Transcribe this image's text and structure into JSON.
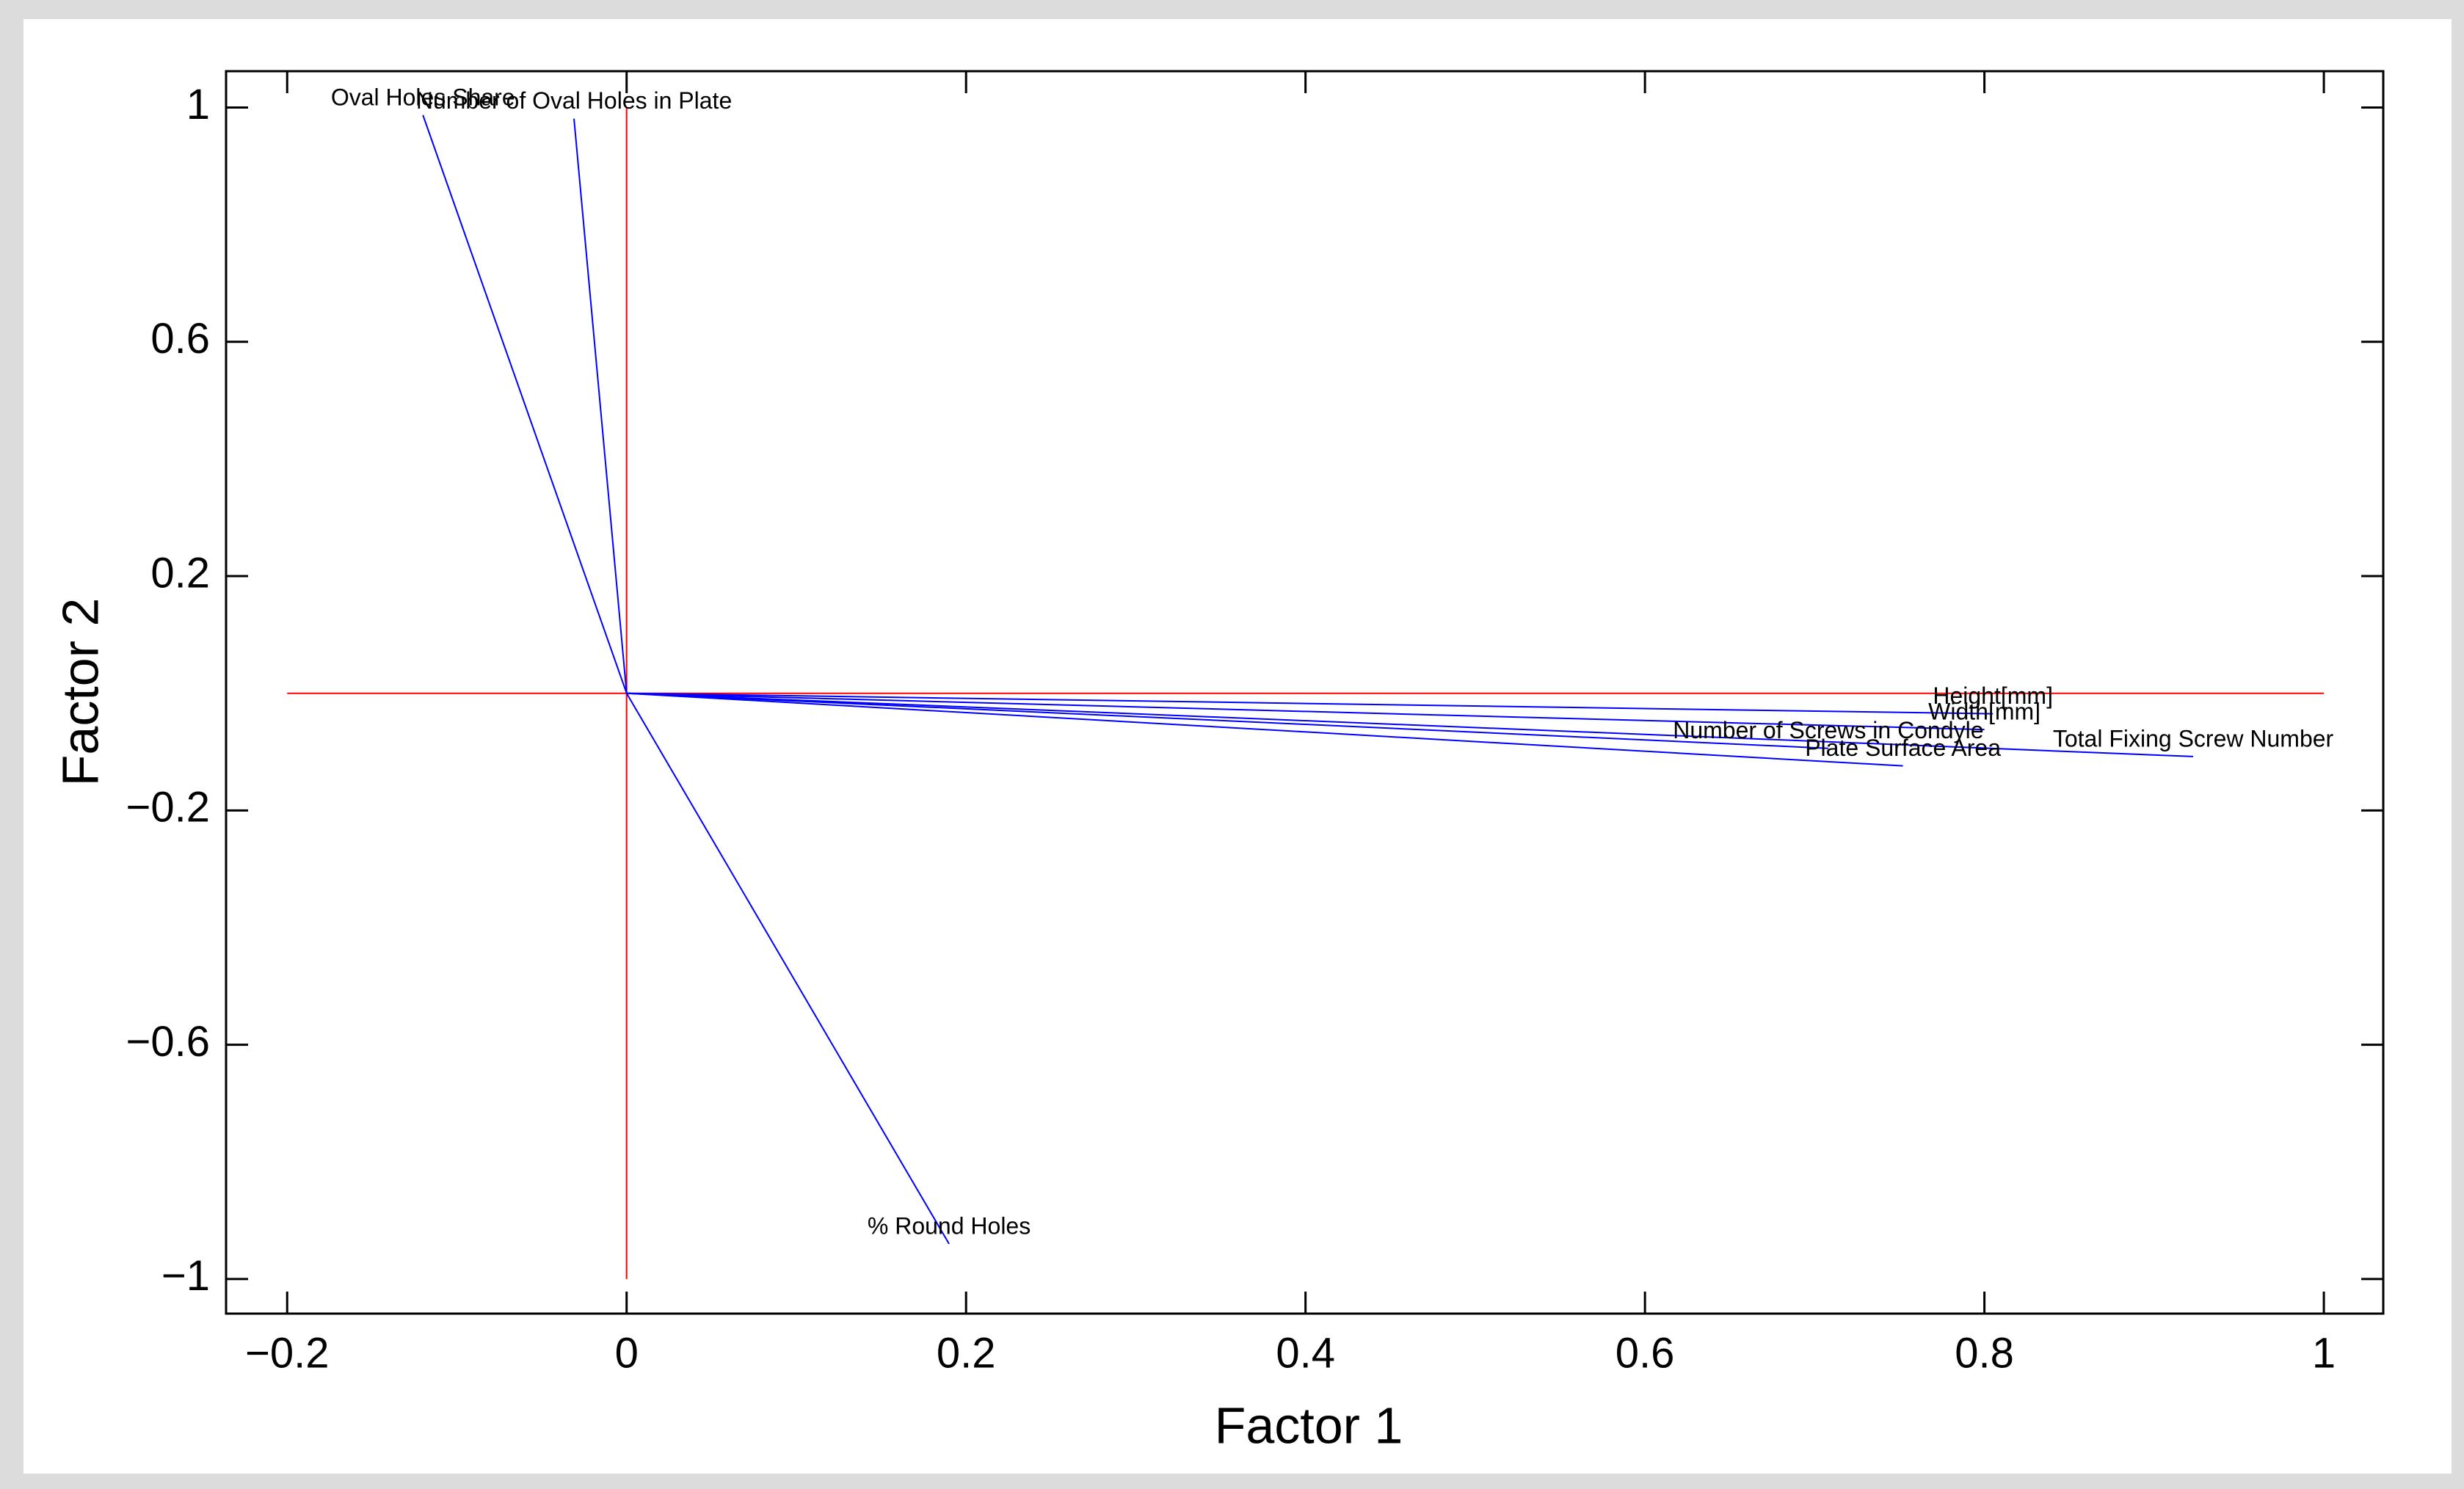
{
  "chart_data": {
    "type": "biplot",
    "xlabel": "Factor 1",
    "ylabel": "Factor 2",
    "labels": [
      "Oval Holes Share",
      "Number of Oval Holes in Plate",
      "% Round Holes",
      "Height[mm]",
      "Width[mm]",
      "Total Fixing Screw Number",
      "Number of Screws in Condyle",
      "Plate Surface Area"
    ],
    "x": [
      -0.12,
      -0.031,
      0.19,
      0.805,
      0.8,
      0.923,
      0.708,
      0.752
    ],
    "y": [
      0.987,
      0.981,
      -0.94,
      -0.035,
      -0.062,
      -0.108,
      -0.094,
      -0.124
    ],
    "color": "#0000ff",
    "axis_color": "#ff0000",
    "xlim": [
      -0.236,
      1.035
    ],
    "ylim": [
      -1.059,
      1.062
    ],
    "xticks": [
      {
        "value": -0.2,
        "label": "−0.2"
      },
      0,
      0.2,
      0.4,
      0.6,
      0.8,
      1
    ],
    "yticks": [
      {
        "value": -1,
        "label": "−1"
      },
      {
        "value": -0.6,
        "label": "−0.6"
      },
      {
        "value": -0.2,
        "label": "−0.2"
      },
      0.2,
      0.6,
      1
    ]
  }
}
